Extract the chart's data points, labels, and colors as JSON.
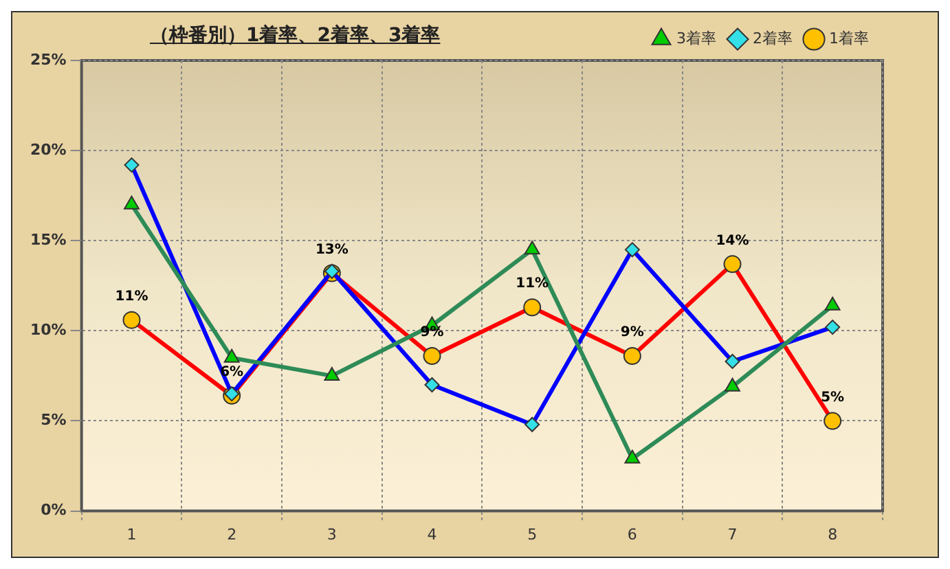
{
  "chart_data": {
    "type": "line",
    "title": "（枠番別）1着率、2着率、3着率",
    "categories": [
      "1",
      "2",
      "3",
      "4",
      "5",
      "6",
      "7",
      "8"
    ],
    "series": [
      {
        "name": "3着率",
        "color": "#2e8b57",
        "marker": "triangle",
        "colors": [
          "#00cc00",
          "#00cc00",
          "#00cc00",
          "#00cc00",
          "#00cc00",
          "#00cc00",
          "#00cc00",
          "#00cc00"
        ],
        "values": [
          17.0,
          8.5,
          7.5,
          10.3,
          14.5,
          2.9,
          6.9,
          11.4
        ]
      },
      {
        "name": "2着率",
        "color": "#0000ff",
        "marker": "diamond",
        "colors": [
          "#33e0e8",
          "#33e0e8",
          "#33e0e8",
          "#33e0e8",
          "#33e0e8",
          "#33e0e8",
          "#33e0e8",
          "#33e0e8"
        ],
        "values": [
          19.2,
          6.5,
          13.3,
          7.0,
          4.8,
          14.5,
          8.3,
          10.2
        ]
      },
      {
        "name": "1着率",
        "color": "#ff0000",
        "marker": "circle",
        "colors": [
          "#ffc000",
          "#ffc000",
          "#ffc000",
          "#ffc000",
          "#ffc000",
          "#ffc000",
          "#ffc000",
          "#ffc000"
        ],
        "values": [
          10.6,
          6.4,
          13.2,
          8.6,
          11.3,
          8.6,
          13.7,
          5.0
        ],
        "value_labels": [
          "11%",
          "6%",
          "13%",
          "9%",
          "11%",
          "9%",
          "14%",
          "5%"
        ]
      }
    ],
    "ylim": [
      0,
      25
    ],
    "yticks": [
      {
        "value": 0,
        "label": "0%"
      },
      {
        "value": 5,
        "label": "5%"
      },
      {
        "value": 10,
        "label": "10%"
      },
      {
        "value": 15,
        "label": "15%"
      },
      {
        "value": 20,
        "label": "20%"
      },
      {
        "value": 25,
        "label": "25%"
      }
    ],
    "grid": true,
    "legend": "top right",
    "line_style": "solid"
  }
}
